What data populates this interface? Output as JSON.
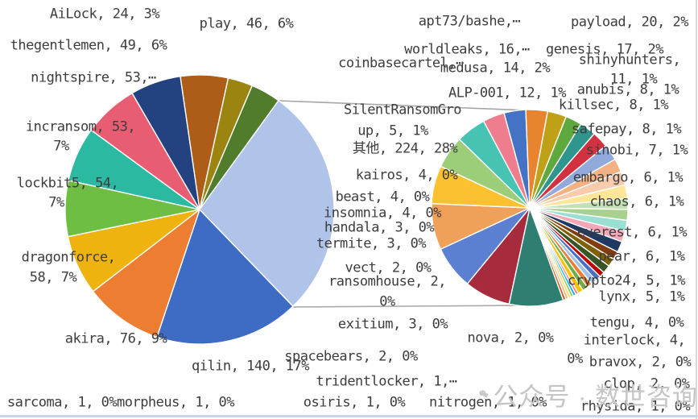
{
  "watermark": {
    "text": "公众号 · 数世咨询",
    "icon": "wechat-icon",
    "color": "#c5c5c5"
  },
  "chart_data": {
    "type": "pie",
    "subtype": "pie-of-pie",
    "title": "",
    "legend": "none",
    "connector_color": "#a6a6a6",
    "label_color": "#3d3d3d",
    "main_pie": {
      "total": 806,
      "start_angle": 136,
      "categories": [
        "qilin",
        "akira",
        "dragonforce",
        "lockbit5",
        "incransom",
        "nightspire",
        "thegentlemen",
        "play",
        "AiLock",
        "coinbasecartel",
        "其他"
      ],
      "values": [
        140,
        76,
        58,
        54,
        53,
        53,
        49,
        46,
        24,
        29,
        224
      ],
      "percent_labels": [
        "17%",
        "9%",
        "7%",
        "7%",
        "7%",
        "7%",
        "6%",
        "6%",
        "3%",
        "4%",
        "28%"
      ],
      "colors": [
        "#3e6cc4",
        "#ed7d31",
        "#efb310",
        "#6fbe44",
        "#2bb9a2",
        "#e85d72",
        "#24427f",
        "#ae5d18",
        "#9c8410",
        "#507c2c",
        "#afc4e8"
      ]
    },
    "secondary_pie": {
      "total": 224,
      "start_angle": 160,
      "categories": [
        "payload",
        "genesis",
        "worldleaks",
        "apt73/bashe",
        "medusa",
        "ALP-001",
        "shinyhunters",
        "anubis",
        "killsec",
        "safepay",
        "sinobi",
        "embargo",
        "chaos",
        "everest",
        "pear",
        "crypto24",
        "lynx",
        "SilentRansomGroup",
        "tengu",
        "interlock",
        "kairos",
        "beast",
        "insomnia",
        "handala",
        "termite",
        "exitium",
        "vect",
        "ransomhouse",
        "nova",
        "spacebears",
        "bravox",
        "clop",
        "tridentlocker",
        "sarcoma",
        "morpheus",
        "osiris",
        "nitrogen",
        "rhysida"
      ],
      "values": [
        20,
        17,
        16,
        17,
        14,
        12,
        11,
        8,
        8,
        8,
        7,
        6,
        6,
        6,
        6,
        5,
        5,
        5,
        4,
        4,
        4,
        4,
        4,
        3,
        3,
        3,
        2,
        2,
        2,
        2,
        2,
        2,
        1,
        1,
        1,
        1,
        1,
        1
      ],
      "colors": [
        "#2e7e72",
        "#a62b3d",
        "#5b7fd1",
        "#f0a159",
        "#fbc12f",
        "#9cce7a",
        "#46c3b2",
        "#ee7e8e",
        "#4472c4",
        "#e8832e",
        "#bfa118",
        "#5fa83e",
        "#2e968c",
        "#d2323f",
        "#92a9dc",
        "#f4b183",
        "#f8cbad",
        "#ffe699",
        "#c5e0b4",
        "#a9d18e",
        "#99e0d2",
        "#f4a7b9",
        "#1f3864",
        "#843c0c",
        "#7f6000",
        "#375623",
        "#c00000",
        "#4a6fc4",
        "#9dc3e6",
        "#ed7d31",
        "#70ad47",
        "#ffc000",
        "#ff7c80",
        "#00b0f0",
        "#92d050",
        "#ffd966",
        "#f4b183",
        "#c55a11"
      ]
    },
    "labels": [
      {
        "id": "ailock",
        "lines": [
          "AiLock, 24, 3%"
        ]
      },
      {
        "id": "play",
        "lines": [
          "play, 46, 6%"
        ]
      },
      {
        "id": "thegentlemen",
        "lines": [
          "thegentlemen, 49, 6%"
        ]
      },
      {
        "id": "nightspire",
        "lines": [
          "nightspire, 53,⋯"
        ]
      },
      {
        "id": "incransom",
        "lines": [
          "incransom, 53,",
          "7%"
        ]
      },
      {
        "id": "lockbit5",
        "lines": [
          "lockbit5, 54,",
          "7%"
        ]
      },
      {
        "id": "dragonforce",
        "lines": [
          "dragonforce,",
          "58, 7%"
        ]
      },
      {
        "id": "akira",
        "lines": [
          "akira, 76, 9%"
        ]
      },
      {
        "id": "qilin",
        "lines": [
          "qilin, 140, 17%"
        ]
      },
      {
        "id": "qita",
        "lines": [
          "其他, 224, 28%"
        ]
      },
      {
        "id": "coinbasecartel",
        "lines": [
          "coinbasecartel,⋯"
        ]
      },
      {
        "id": "apt73",
        "lines": [
          "apt73/bashe,⋯"
        ]
      },
      {
        "id": "worldleaks",
        "lines": [
          "worldleaks, 16,⋯"
        ]
      },
      {
        "id": "medusa",
        "lines": [
          "medusa, 14, 2%"
        ]
      },
      {
        "id": "alp001",
        "lines": [
          "ALP-001, 12, 1%"
        ]
      },
      {
        "id": "srg",
        "lines": [
          "SilentRansomGro",
          "up, 5, 1%"
        ]
      },
      {
        "id": "kairos",
        "lines": [
          "kairos, 4, 0%"
        ]
      },
      {
        "id": "beast",
        "lines": [
          "beast, 4, 0%"
        ]
      },
      {
        "id": "insomnia",
        "lines": [
          "insomnia, 4, 0%"
        ]
      },
      {
        "id": "handala",
        "lines": [
          "handala, 3, 0%"
        ]
      },
      {
        "id": "termite",
        "lines": [
          "termite, 3, 0%"
        ]
      },
      {
        "id": "vect",
        "lines": [
          "vect, 2, 0%"
        ]
      },
      {
        "id": "ransomhouse",
        "lines": [
          "ransomhouse, 2,",
          "0%"
        ]
      },
      {
        "id": "exitium",
        "lines": [
          "exitium, 3, 0%"
        ]
      },
      {
        "id": "nova",
        "lines": [
          "nova, 2, 0%"
        ]
      },
      {
        "id": "spacebears",
        "lines": [
          "spacebears, 2, 0%"
        ]
      },
      {
        "id": "tridentlocker",
        "lines": [
          "tridentlocker, 1,⋯"
        ]
      },
      {
        "id": "payload",
        "lines": [
          "payload, 20, 2%"
        ]
      },
      {
        "id": "genesis",
        "lines": [
          "genesis, 17, 2%"
        ]
      },
      {
        "id": "shinyhunters",
        "lines": [
          "shinyhunters,",
          "11, 1%"
        ]
      },
      {
        "id": "anubis",
        "lines": [
          "anubis, 8, 1%"
        ]
      },
      {
        "id": "killsec",
        "lines": [
          "killsec, 8, 1%"
        ]
      },
      {
        "id": "safepay",
        "lines": [
          "safepay, 8, 1%"
        ]
      },
      {
        "id": "sinobi",
        "lines": [
          "sinobi, 7, 1%"
        ]
      },
      {
        "id": "embargo",
        "lines": [
          "embargo, 6, 1%"
        ]
      },
      {
        "id": "chaos",
        "lines": [
          "chaos, 6, 1%"
        ]
      },
      {
        "id": "everest",
        "lines": [
          "everest, 6, 1%"
        ]
      },
      {
        "id": "pear",
        "lines": [
          "pear, 6, 1%"
        ]
      },
      {
        "id": "crypto24",
        "lines": [
          "crypto24, 5, 1%"
        ]
      },
      {
        "id": "lynx",
        "lines": [
          "lynx, 5, 1%"
        ]
      },
      {
        "id": "tengu",
        "lines": [
          "tengu, 4, 0%"
        ]
      },
      {
        "id": "interlock",
        "lines": [
          "interlock, 4,",
          "0%"
        ]
      },
      {
        "id": "bravox",
        "lines": [
          "bravox, 2, 0%"
        ]
      },
      {
        "id": "clop",
        "lines": [
          "clop, 2, 0%"
        ]
      },
      {
        "id": "rhysida",
        "lines": [
          "rhysida, 1, 0%"
        ]
      },
      {
        "id": "sarcoma",
        "lines": [
          "sarcoma, 1, 0%"
        ]
      },
      {
        "id": "morpheus",
        "lines": [
          "morpheus, 1, 0%"
        ]
      },
      {
        "id": "osiris",
        "lines": [
          "osiris, 1, 0%"
        ]
      },
      {
        "id": "nitrogen",
        "lines": [
          "nitrogen, 1, 0%"
        ]
      }
    ]
  }
}
